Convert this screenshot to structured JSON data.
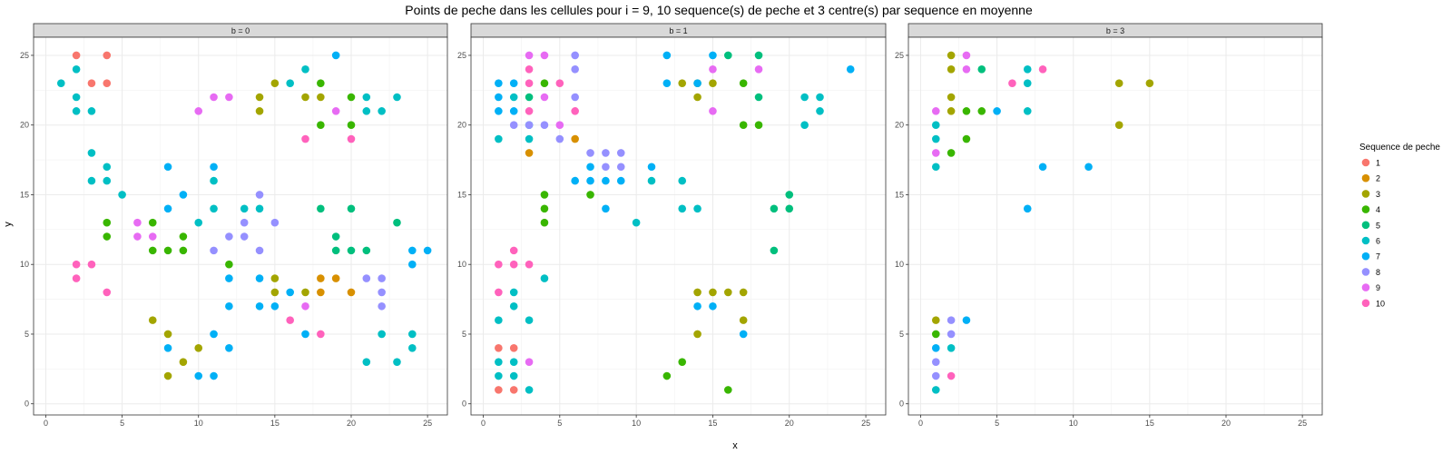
{
  "chart_data": {
    "type": "scatter",
    "title": "Points de peche dans les cellules pour i = 9, 10 sequence(s) de peche et 3 centre(s) par sequence en moyenne",
    "xlabel": "x",
    "ylabel": "y",
    "xlim": [
      -0.8,
      26.3
    ],
    "ylim": [
      -0.8,
      26.3
    ],
    "x_ticks": [
      0,
      5,
      10,
      15,
      20,
      25
    ],
    "y_ticks": [
      0,
      5,
      10,
      15,
      20,
      25
    ],
    "grid": true,
    "legend": {
      "title": "Sequence de peche",
      "position": "right",
      "entries": [
        "1",
        "2",
        "3",
        "4",
        "5",
        "6",
        "7",
        "8",
        "9",
        "10"
      ]
    },
    "colors": {
      "1": "#F8766D",
      "2": "#D89000",
      "3": "#A3A500",
      "4": "#39B600",
      "5": "#00BF7D",
      "6": "#00BFC4",
      "7": "#00B0F6",
      "8": "#9590FF",
      "9": "#E76BF3",
      "10": "#FF62BC"
    },
    "facets": [
      {
        "label": "b = 0",
        "points": [
          [
            2,
            25,
            "1"
          ],
          [
            4,
            25,
            "1"
          ],
          [
            3,
            23,
            "1"
          ],
          [
            4,
            23,
            "1"
          ],
          [
            18,
            9,
            "2"
          ],
          [
            19,
            9,
            "2"
          ],
          [
            18,
            8,
            "2"
          ],
          [
            20,
            8,
            "2"
          ],
          [
            15,
            23,
            "3"
          ],
          [
            14,
            22,
            "3"
          ],
          [
            17,
            22,
            "3"
          ],
          [
            18,
            22,
            "3"
          ],
          [
            14,
            21,
            "3"
          ],
          [
            15,
            9,
            "3"
          ],
          [
            15,
            8,
            "3"
          ],
          [
            17,
            8,
            "3"
          ],
          [
            7,
            6,
            "3"
          ],
          [
            8,
            5,
            "3"
          ],
          [
            10,
            4,
            "3"
          ],
          [
            9,
            3,
            "3"
          ],
          [
            8,
            2,
            "3"
          ],
          [
            18,
            23,
            "4"
          ],
          [
            20,
            22,
            "4"
          ],
          [
            18,
            20,
            "4"
          ],
          [
            20,
            20,
            "4"
          ],
          [
            4,
            13,
            "4"
          ],
          [
            7,
            13,
            "4"
          ],
          [
            4,
            12,
            "4"
          ],
          [
            9,
            12,
            "4"
          ],
          [
            7,
            11,
            "4"
          ],
          [
            8,
            11,
            "4"
          ],
          [
            9,
            11,
            "4"
          ],
          [
            12,
            10,
            "4"
          ],
          [
            18,
            14,
            "5"
          ],
          [
            20,
            14,
            "5"
          ],
          [
            23,
            13,
            "5"
          ],
          [
            19,
            12,
            "5"
          ],
          [
            19,
            11,
            "5"
          ],
          [
            20,
            11,
            "5"
          ],
          [
            21,
            11,
            "5"
          ],
          [
            1,
            23,
            "6"
          ],
          [
            2,
            24,
            "6"
          ],
          [
            17,
            24,
            "6"
          ],
          [
            16,
            23,
            "6"
          ],
          [
            2,
            22,
            "6"
          ],
          [
            21,
            22,
            "6"
          ],
          [
            23,
            22,
            "6"
          ],
          [
            2,
            21,
            "6"
          ],
          [
            3,
            21,
            "6"
          ],
          [
            21,
            21,
            "6"
          ],
          [
            22,
            21,
            "6"
          ],
          [
            3,
            18,
            "6"
          ],
          [
            4,
            17,
            "6"
          ],
          [
            3,
            16,
            "6"
          ],
          [
            4,
            16,
            "6"
          ],
          [
            11,
            16,
            "6"
          ],
          [
            5,
            15,
            "6"
          ],
          [
            11,
            14,
            "6"
          ],
          [
            13,
            14,
            "6"
          ],
          [
            14,
            14,
            "6"
          ],
          [
            10,
            13,
            "6"
          ],
          [
            22,
            5,
            "6"
          ],
          [
            24,
            5,
            "6"
          ],
          [
            24,
            4,
            "6"
          ],
          [
            21,
            3,
            "6"
          ],
          [
            23,
            3,
            "6"
          ],
          [
            19,
            25,
            "7"
          ],
          [
            8,
            17,
            "7"
          ],
          [
            11,
            17,
            "7"
          ],
          [
            9,
            15,
            "7"
          ],
          [
            8,
            14,
            "7"
          ],
          [
            24,
            11,
            "7"
          ],
          [
            25,
            11,
            "7"
          ],
          [
            24,
            10,
            "7"
          ],
          [
            14,
            9,
            "7"
          ],
          [
            12,
            9,
            "7"
          ],
          [
            16,
            8,
            "7"
          ],
          [
            12,
            7,
            "7"
          ],
          [
            14,
            7,
            "7"
          ],
          [
            15,
            7,
            "7"
          ],
          [
            11,
            5,
            "7"
          ],
          [
            17,
            5,
            "7"
          ],
          [
            8,
            4,
            "7"
          ],
          [
            12,
            4,
            "7"
          ],
          [
            10,
            2,
            "7"
          ],
          [
            11,
            2,
            "7"
          ],
          [
            14,
            15,
            "8"
          ],
          [
            13,
            13,
            "8"
          ],
          [
            15,
            13,
            "8"
          ],
          [
            12,
            12,
            "8"
          ],
          [
            13,
            12,
            "8"
          ],
          [
            11,
            11,
            "8"
          ],
          [
            14,
            11,
            "8"
          ],
          [
            21,
            9,
            "8"
          ],
          [
            22,
            9,
            "8"
          ],
          [
            22,
            8,
            "8"
          ],
          [
            22,
            7,
            "8"
          ],
          [
            11,
            22,
            "9"
          ],
          [
            12,
            22,
            "9"
          ],
          [
            19,
            21,
            "9"
          ],
          [
            10,
            21,
            "9"
          ],
          [
            6,
            13,
            "9"
          ],
          [
            6,
            12,
            "9"
          ],
          [
            7,
            12,
            "9"
          ],
          [
            17,
            7,
            "9"
          ],
          [
            17,
            19,
            "10"
          ],
          [
            20,
            19,
            "10"
          ],
          [
            2,
            10,
            "10"
          ],
          [
            3,
            10,
            "10"
          ],
          [
            2,
            9,
            "10"
          ],
          [
            4,
            8,
            "10"
          ],
          [
            16,
            6,
            "10"
          ],
          [
            18,
            5,
            "10"
          ]
        ]
      },
      {
        "label": "b = 1",
        "points": [
          [
            1,
            4,
            "1"
          ],
          [
            2,
            4,
            "1"
          ],
          [
            1,
            1,
            "1"
          ],
          [
            2,
            1,
            "1"
          ],
          [
            6,
            19,
            "2"
          ],
          [
            3,
            18,
            "2"
          ],
          [
            14,
            23,
            "3"
          ],
          [
            15,
            23,
            "3"
          ],
          [
            13,
            23,
            "3"
          ],
          [
            14,
            22,
            "3"
          ],
          [
            14,
            8,
            "3"
          ],
          [
            15,
            8,
            "3"
          ],
          [
            16,
            8,
            "3"
          ],
          [
            17,
            8,
            "3"
          ],
          [
            17,
            6,
            "3"
          ],
          [
            14,
            5,
            "3"
          ],
          [
            4,
            23,
            "4"
          ],
          [
            17,
            23,
            "4"
          ],
          [
            17,
            20,
            "4"
          ],
          [
            18,
            20,
            "4"
          ],
          [
            4,
            15,
            "4"
          ],
          [
            7,
            15,
            "4"
          ],
          [
            4,
            14,
            "4"
          ],
          [
            4,
            13,
            "4"
          ],
          [
            13,
            3,
            "4"
          ],
          [
            12,
            2,
            "4"
          ],
          [
            16,
            1,
            "4"
          ],
          [
            16,
            25,
            "5"
          ],
          [
            18,
            25,
            "5"
          ],
          [
            3,
            22,
            "5"
          ],
          [
            18,
            22,
            "5"
          ],
          [
            20,
            15,
            "5"
          ],
          [
            19,
            14,
            "5"
          ],
          [
            20,
            14,
            "5"
          ],
          [
            19,
            11,
            "5"
          ],
          [
            2,
            22,
            "6"
          ],
          [
            21,
            22,
            "6"
          ],
          [
            22,
            22,
            "6"
          ],
          [
            22,
            21,
            "6"
          ],
          [
            21,
            20,
            "6"
          ],
          [
            3,
            20,
            "6"
          ],
          [
            1,
            19,
            "6"
          ],
          [
            3,
            19,
            "6"
          ],
          [
            11,
            16,
            "6"
          ],
          [
            13,
            16,
            "6"
          ],
          [
            13,
            14,
            "6"
          ],
          [
            14,
            14,
            "6"
          ],
          [
            10,
            13,
            "6"
          ],
          [
            4,
            9,
            "6"
          ],
          [
            2,
            8,
            "6"
          ],
          [
            2,
            7,
            "6"
          ],
          [
            1,
            6,
            "6"
          ],
          [
            3,
            6,
            "6"
          ],
          [
            1,
            3,
            "6"
          ],
          [
            2,
            3,
            "6"
          ],
          [
            1,
            2,
            "6"
          ],
          [
            2,
            2,
            "6"
          ],
          [
            3,
            1,
            "6"
          ],
          [
            12,
            25,
            "7"
          ],
          [
            15,
            25,
            "7"
          ],
          [
            24,
            24,
            "7"
          ],
          [
            1,
            23,
            "7"
          ],
          [
            2,
            23,
            "7"
          ],
          [
            12,
            23,
            "7"
          ],
          [
            14,
            23,
            "7"
          ],
          [
            1,
            22,
            "7"
          ],
          [
            1,
            21,
            "7"
          ],
          [
            2,
            21,
            "7"
          ],
          [
            7,
            17,
            "7"
          ],
          [
            11,
            17,
            "7"
          ],
          [
            6,
            16,
            "7"
          ],
          [
            7,
            16,
            "7"
          ],
          [
            8,
            16,
            "7"
          ],
          [
            9,
            16,
            "7"
          ],
          [
            8,
            14,
            "7"
          ],
          [
            14,
            7,
            "7"
          ],
          [
            15,
            7,
            "7"
          ],
          [
            17,
            5,
            "7"
          ],
          [
            6,
            25,
            "8"
          ],
          [
            6,
            24,
            "8"
          ],
          [
            6,
            22,
            "8"
          ],
          [
            2,
            20,
            "8"
          ],
          [
            3,
            20,
            "8"
          ],
          [
            4,
            20,
            "8"
          ],
          [
            5,
            19,
            "8"
          ],
          [
            7,
            18,
            "8"
          ],
          [
            8,
            18,
            "8"
          ],
          [
            9,
            18,
            "8"
          ],
          [
            8,
            17,
            "8"
          ],
          [
            9,
            17,
            "8"
          ],
          [
            3,
            25,
            "9"
          ],
          [
            4,
            25,
            "9"
          ],
          [
            15,
            24,
            "9"
          ],
          [
            18,
            24,
            "9"
          ],
          [
            4,
            22,
            "9"
          ],
          [
            5,
            20,
            "9"
          ],
          [
            15,
            21,
            "9"
          ],
          [
            3,
            3,
            "9"
          ],
          [
            3,
            24,
            "10"
          ],
          [
            3,
            23,
            "10"
          ],
          [
            5,
            23,
            "10"
          ],
          [
            6,
            21,
            "10"
          ],
          [
            3,
            21,
            "10"
          ],
          [
            2,
            11,
            "10"
          ],
          [
            1,
            10,
            "10"
          ],
          [
            2,
            10,
            "10"
          ],
          [
            3,
            10,
            "10"
          ],
          [
            1,
            8,
            "10"
          ]
        ]
      },
      {
        "label": "b = 3",
        "points": [
          [
            2,
            25,
            "3"
          ],
          [
            2,
            24,
            "3"
          ],
          [
            13,
            23,
            "3"
          ],
          [
            15,
            23,
            "3"
          ],
          [
            2,
            22,
            "3"
          ],
          [
            2,
            21,
            "3"
          ],
          [
            13,
            20,
            "3"
          ],
          [
            1,
            6,
            "3"
          ],
          [
            3,
            21,
            "4"
          ],
          [
            4,
            21,
            "4"
          ],
          [
            3,
            19,
            "4"
          ],
          [
            2,
            18,
            "4"
          ],
          [
            1,
            5,
            "4"
          ],
          [
            4,
            24,
            "5"
          ],
          [
            7,
            24,
            "6"
          ],
          [
            7,
            23,
            "6"
          ],
          [
            1,
            20,
            "6"
          ],
          [
            1,
            19,
            "6"
          ],
          [
            1,
            17,
            "6"
          ],
          [
            7,
            21,
            "6"
          ],
          [
            2,
            4,
            "6"
          ],
          [
            1,
            1,
            "6"
          ],
          [
            5,
            21,
            "7"
          ],
          [
            8,
            17,
            "7"
          ],
          [
            11,
            17,
            "7"
          ],
          [
            7,
            14,
            "7"
          ],
          [
            3,
            6,
            "7"
          ],
          [
            1,
            4,
            "7"
          ],
          [
            2,
            6,
            "8"
          ],
          [
            2,
            5,
            "8"
          ],
          [
            1,
            3,
            "8"
          ],
          [
            1,
            2,
            "8"
          ],
          [
            3,
            25,
            "9"
          ],
          [
            3,
            24,
            "9"
          ],
          [
            1,
            21,
            "9"
          ],
          [
            1,
            18,
            "9"
          ],
          [
            6,
            23,
            "10"
          ],
          [
            8,
            24,
            "10"
          ],
          [
            2,
            2,
            "10"
          ]
        ]
      }
    ]
  }
}
